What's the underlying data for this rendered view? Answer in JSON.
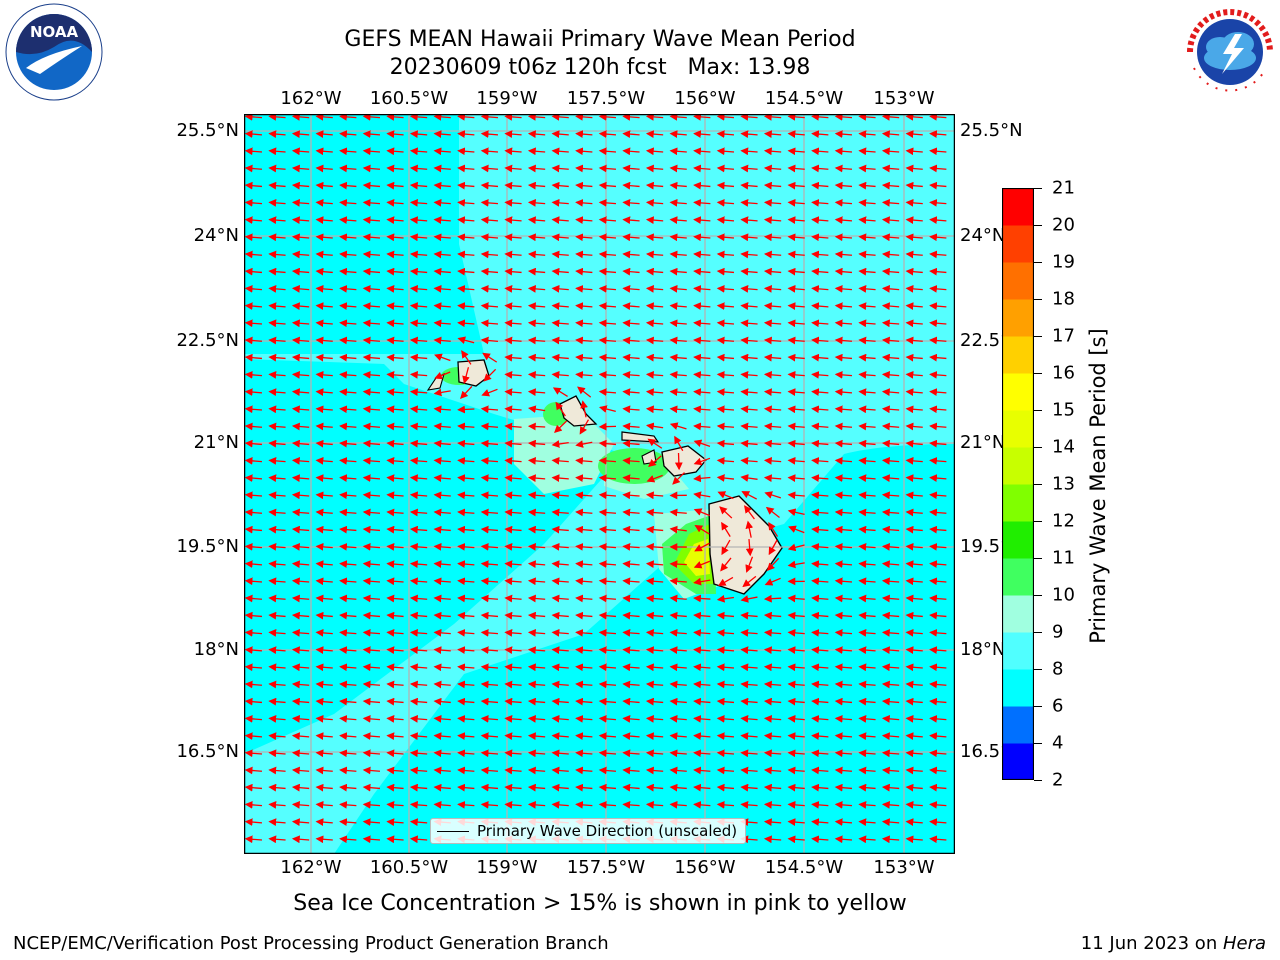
{
  "header": {
    "title_line1": "GEFS MEAN Hawaii Primary Wave Mean Period",
    "title_line2": "20230609 t06z 120h fcst   Max: 13.98"
  },
  "map": {
    "lon_ticks": [
      "162°W",
      "160.5°W",
      "159°W",
      "157.5°W",
      "156°W",
      "154.5°W",
      "153°W"
    ],
    "lat_ticks_left": [
      "25.5°N",
      "24°N",
      "22.5°N",
      "21°N",
      "19.5°N",
      "18°N",
      "16.5°N"
    ],
    "lat_ticks_right": [
      "25.5°N",
      "24°N",
      "22.5°",
      "21°N",
      "19.5°",
      "18°N",
      "16.5°"
    ],
    "legend_label": "Primary Wave Direction (unscaled)",
    "arrow_color": "#ff0000",
    "land_color": "#efe9d9"
  },
  "colorbar": {
    "label": "Primary Wave Mean Period [s]",
    "ticks": [
      "21",
      "20",
      "19",
      "18",
      "17",
      "16",
      "15",
      "14",
      "13",
      "12",
      "11",
      "10",
      "9",
      "8",
      "6",
      "4",
      "2"
    ],
    "levels": [
      2,
      4,
      6,
      8,
      9,
      10,
      11,
      12,
      13,
      14,
      15,
      16,
      17,
      18,
      19,
      20,
      21
    ],
    "colors": [
      "#0000ff",
      "#0070ff",
      "#00ffff",
      "#50ffff",
      "#a0ffe0",
      "#40ff60",
      "#20ee00",
      "#80ff00",
      "#c8ff00",
      "#e8ff00",
      "#ffff00",
      "#ffd000",
      "#ffa000",
      "#ff7000",
      "#ff4000",
      "#ff0000"
    ]
  },
  "notes": {
    "sea_ice": "Sea Ice Concentration > 15% is shown in pink to yellow"
  },
  "footer": {
    "left": "NCEP/EMC/Verification Post Processing Product Generation Branch",
    "date": "11 Jun 2023 on ",
    "machine": "Hera"
  },
  "logos": {
    "noaa": "NOAA",
    "nws": "NATIONAL WEATHER SERVICE"
  }
}
